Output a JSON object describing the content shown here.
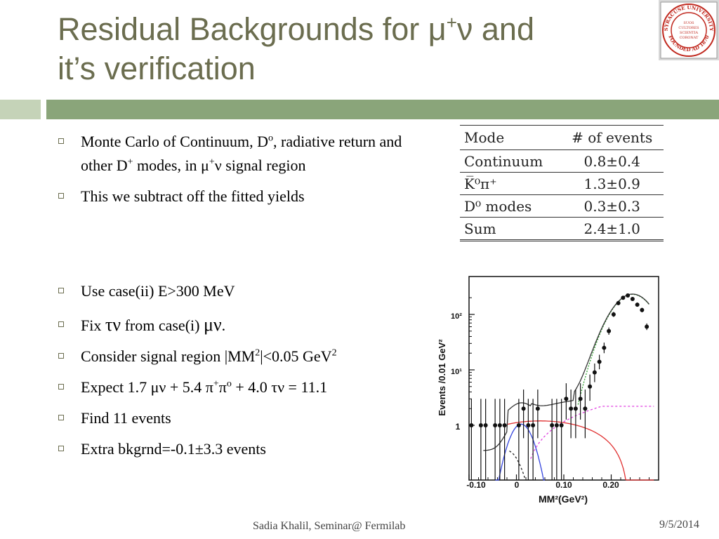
{
  "title": {
    "line1_prefix": "Residual Backgrounds for μ",
    "line1_sup": "+",
    "line1_suffix": "ν and",
    "line2": "it’s verification"
  },
  "seal": {
    "text_top": "SYRACUSE UNIVERSITY",
    "text_bottom": "FOUNDED AD 1870",
    "center": [
      "SUOS",
      "CULTORES",
      "SCIENTIA",
      "CORONAT"
    ]
  },
  "bullets": [
    {
      "html": "Monte Carlo of Continuum, D<sup>o</sup>, radiative return and other D<sup>+</sup> modes, in μ<sup>+</sup>ν signal region"
    },
    {
      "html": "This we subtract off the fitted yields"
    },
    {
      "html": "Use case(ii) E&gt;300 MeV"
    },
    {
      "html": "Fix <span style=\"font-size:26px\">τν</span> from case(i) <span style=\"font-size:26px\">μν</span>."
    },
    {
      "html": "Consider signal region |MM<sup>2</sup>|&lt;0.05 GeV<sup>2</sup>"
    },
    {
      "html": "Expect 1.7 μν + 5.4 π<sup>+</sup>π<sup>o</sup> + 4.0 τν = 11.1"
    },
    {
      "html": "Find 11 events"
    },
    {
      "html": "Extra bkgrnd=-0.1±3.3 events"
    }
  ],
  "table": {
    "headers": [
      "Mode",
      "# of events"
    ],
    "rows": [
      [
        "Continuum",
        "0.8±0.4"
      ],
      [
        "K̅⁰π⁺",
        "1.3±0.9"
      ],
      [
        "D⁰ modes",
        "0.3±0.3"
      ],
      [
        "Sum",
        "2.4±1.0"
      ]
    ]
  },
  "plot": {
    "ylabel": "Events /0.01 GeV²",
    "xlabel": "MM²(GeV²)",
    "xticks": [
      "-0.10",
      "0",
      "0.10",
      "0.20"
    ],
    "yticks": [
      "1",
      "10¹",
      "10²"
    ],
    "xlim": [
      -0.1,
      0.3
    ],
    "colors": {
      "total": "#333333",
      "blue": "#3344dd",
      "red": "#e03030",
      "magenta": "#e040e0",
      "green": "#30a030",
      "black_dash": "#222222"
    },
    "points": [
      [
        -0.095,
        1
      ],
      [
        -0.075,
        1
      ],
      [
        -0.065,
        1
      ],
      [
        -0.045,
        1
      ],
      [
        -0.035,
        1
      ],
      [
        -0.025,
        1
      ],
      [
        0.005,
        1
      ],
      [
        0.015,
        2
      ],
      [
        0.025,
        1
      ],
      [
        0.035,
        1
      ],
      [
        0.045,
        2
      ],
      [
        0.075,
        1
      ],
      [
        0.085,
        1
      ],
      [
        0.095,
        1
      ],
      [
        0.105,
        3
      ],
      [
        0.115,
        2
      ],
      [
        0.125,
        2
      ],
      [
        0.135,
        3
      ],
      [
        0.145,
        2
      ],
      [
        0.155,
        5
      ],
      [
        0.165,
        9
      ],
      [
        0.175,
        14
      ],
      [
        0.185,
        25
      ],
      [
        0.195,
        50
      ],
      [
        0.205,
        100
      ],
      [
        0.215,
        160
      ],
      [
        0.225,
        200
      ],
      [
        0.235,
        220
      ],
      [
        0.245,
        190
      ],
      [
        0.255,
        150
      ],
      [
        0.265,
        120
      ],
      [
        0.275,
        60
      ]
    ]
  },
  "footer": "Sadia Khalil, Seminar@ Fermilab",
  "date": "9/5/2014"
}
